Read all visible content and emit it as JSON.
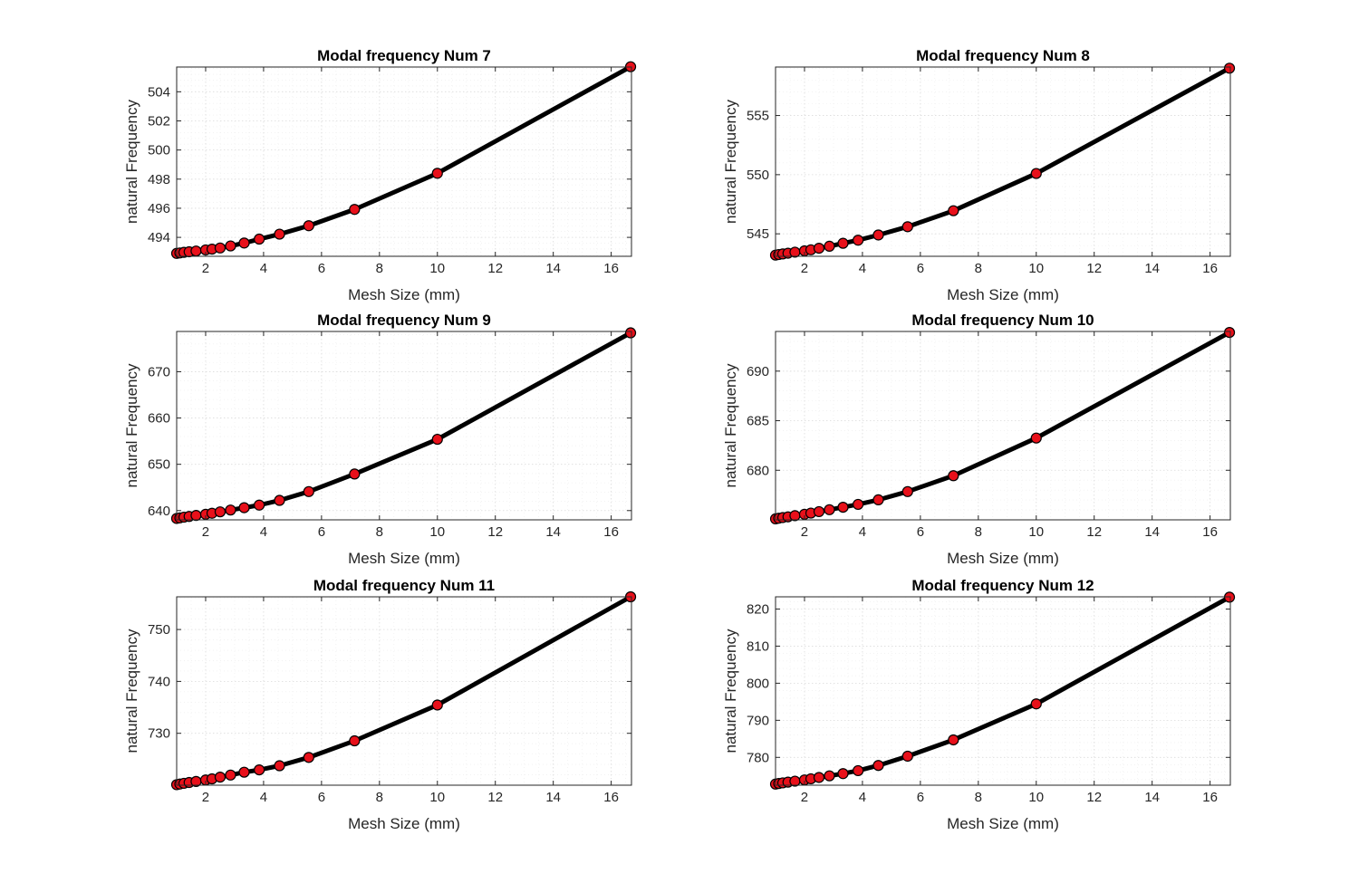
{
  "chart_data": [
    {
      "type": "line",
      "title": "Modal frequency Num 7",
      "xlabel": "Mesh Size (mm)",
      "ylabel": "natural Frequency",
      "xlim": [
        1,
        16.7
      ],
      "ylim": [
        492.7,
        505.7
      ],
      "xticks": [
        2,
        4,
        6,
        8,
        10,
        12,
        14,
        16
      ],
      "yticks": [
        494,
        496,
        498,
        500,
        502,
        504
      ],
      "grid": true,
      "minor_grid": true,
      "x": [
        1.0,
        1.11,
        1.25,
        1.43,
        1.67,
        2.0,
        2.22,
        2.5,
        2.86,
        3.33,
        3.85,
        4.55,
        5.56,
        7.14,
        10.0,
        16.67
      ],
      "y": [
        492.9,
        492.93,
        492.97,
        493.01,
        493.06,
        493.14,
        493.19,
        493.27,
        493.41,
        493.61,
        493.88,
        494.22,
        494.8,
        495.92,
        498.4,
        505.72
      ]
    },
    {
      "type": "line",
      "title": "Modal frequency Num 8",
      "xlabel": "Mesh Size (mm)",
      "ylabel": "natural Frequency",
      "xlim": [
        1,
        16.7
      ],
      "ylim": [
        543.1,
        559.1
      ],
      "xticks": [
        2,
        4,
        6,
        8,
        10,
        12,
        14,
        16
      ],
      "yticks": [
        545,
        550,
        555
      ],
      "grid": true,
      "minor_grid": true,
      "x": [
        1.0,
        1.11,
        1.25,
        1.43,
        1.67,
        2.0,
        2.22,
        2.5,
        2.86,
        3.33,
        3.85,
        4.55,
        5.56,
        7.14,
        10.0,
        16.67
      ],
      "y": [
        543.2,
        543.25,
        543.3,
        543.36,
        543.45,
        543.56,
        543.65,
        543.78,
        543.95,
        544.2,
        544.46,
        544.9,
        545.6,
        546.95,
        550.1,
        559.0
      ]
    },
    {
      "type": "line",
      "title": "Modal frequency Num 9",
      "xlabel": "Mesh Size (mm)",
      "ylabel": "natural Frequency",
      "xlim": [
        1,
        16.7
      ],
      "ylim": [
        638,
        678.7
      ],
      "xticks": [
        2,
        4,
        6,
        8,
        10,
        12,
        14,
        16
      ],
      "yticks": [
        640,
        650,
        660,
        670
      ],
      "grid": true,
      "minor_grid": true,
      "x": [
        1.0,
        1.11,
        1.25,
        1.43,
        1.67,
        2.0,
        2.22,
        2.5,
        2.86,
        3.33,
        3.85,
        4.55,
        5.56,
        7.14,
        10.0,
        16.67
      ],
      "y": [
        638.3,
        638.42,
        638.57,
        638.73,
        638.95,
        639.2,
        639.42,
        639.72,
        640.12,
        640.62,
        641.18,
        642.2,
        644.1,
        647.9,
        655.4,
        678.4
      ]
    },
    {
      "type": "line",
      "title": "Modal frequency Num 10",
      "xlabel": "Mesh Size (mm)",
      "ylabel": "natural Frequency",
      "xlim": [
        1,
        16.7
      ],
      "ylim": [
        675,
        694
      ],
      "xticks": [
        2,
        4,
        6,
        8,
        10,
        12,
        14,
        16
      ],
      "yticks": [
        680,
        685,
        690
      ],
      "grid": true,
      "minor_grid": true,
      "x": [
        1.0,
        1.11,
        1.25,
        1.43,
        1.67,
        2.0,
        2.22,
        2.5,
        2.86,
        3.33,
        3.85,
        4.55,
        5.56,
        7.14,
        10.0,
        16.67
      ],
      "y": [
        675.1,
        675.16,
        675.23,
        675.3,
        675.42,
        675.56,
        675.68,
        675.83,
        676.02,
        676.27,
        676.56,
        677.02,
        677.85,
        679.45,
        683.25,
        693.9
      ]
    },
    {
      "type": "line",
      "title": "Modal frequency Num 11",
      "xlabel": "Mesh Size (mm)",
      "ylabel": "natural Frequency",
      "xlim": [
        1,
        16.7
      ],
      "ylim": [
        720,
        756.3
      ],
      "xticks": [
        2,
        4,
        6,
        8,
        10,
        12,
        14,
        16
      ],
      "yticks": [
        730,
        740,
        750
      ],
      "grid": true,
      "minor_grid": true,
      "x": [
        1.0,
        1.11,
        1.25,
        1.43,
        1.67,
        2.0,
        2.22,
        2.5,
        2.86,
        3.33,
        3.85,
        4.55,
        5.56,
        7.14,
        10.0,
        16.67
      ],
      "y": [
        720.1,
        720.22,
        720.36,
        720.52,
        720.72,
        721.0,
        721.22,
        721.55,
        721.95,
        722.5,
        722.95,
        723.75,
        725.35,
        728.55,
        735.45,
        756.3
      ]
    },
    {
      "type": "line",
      "title": "Modal frequency Num 12",
      "xlabel": "Mesh Size (mm)",
      "ylabel": "natural Frequency",
      "xlim": [
        1,
        16.7
      ],
      "ylim": [
        772.5,
        823.3
      ],
      "xticks": [
        2,
        4,
        6,
        8,
        10,
        12,
        14,
        16
      ],
      "yticks": [
        780,
        790,
        800,
        810,
        820
      ],
      "grid": true,
      "minor_grid": true,
      "x": [
        1.0,
        1.11,
        1.25,
        1.43,
        1.67,
        2.0,
        2.22,
        2.5,
        2.86,
        3.33,
        3.85,
        4.55,
        5.56,
        7.14,
        10.0,
        16.67
      ],
      "y": [
        772.8,
        772.95,
        773.12,
        773.32,
        773.58,
        773.92,
        774.22,
        774.58,
        775.02,
        775.62,
        776.42,
        777.82,
        780.32,
        784.72,
        794.42,
        823.2
      ]
    }
  ]
}
